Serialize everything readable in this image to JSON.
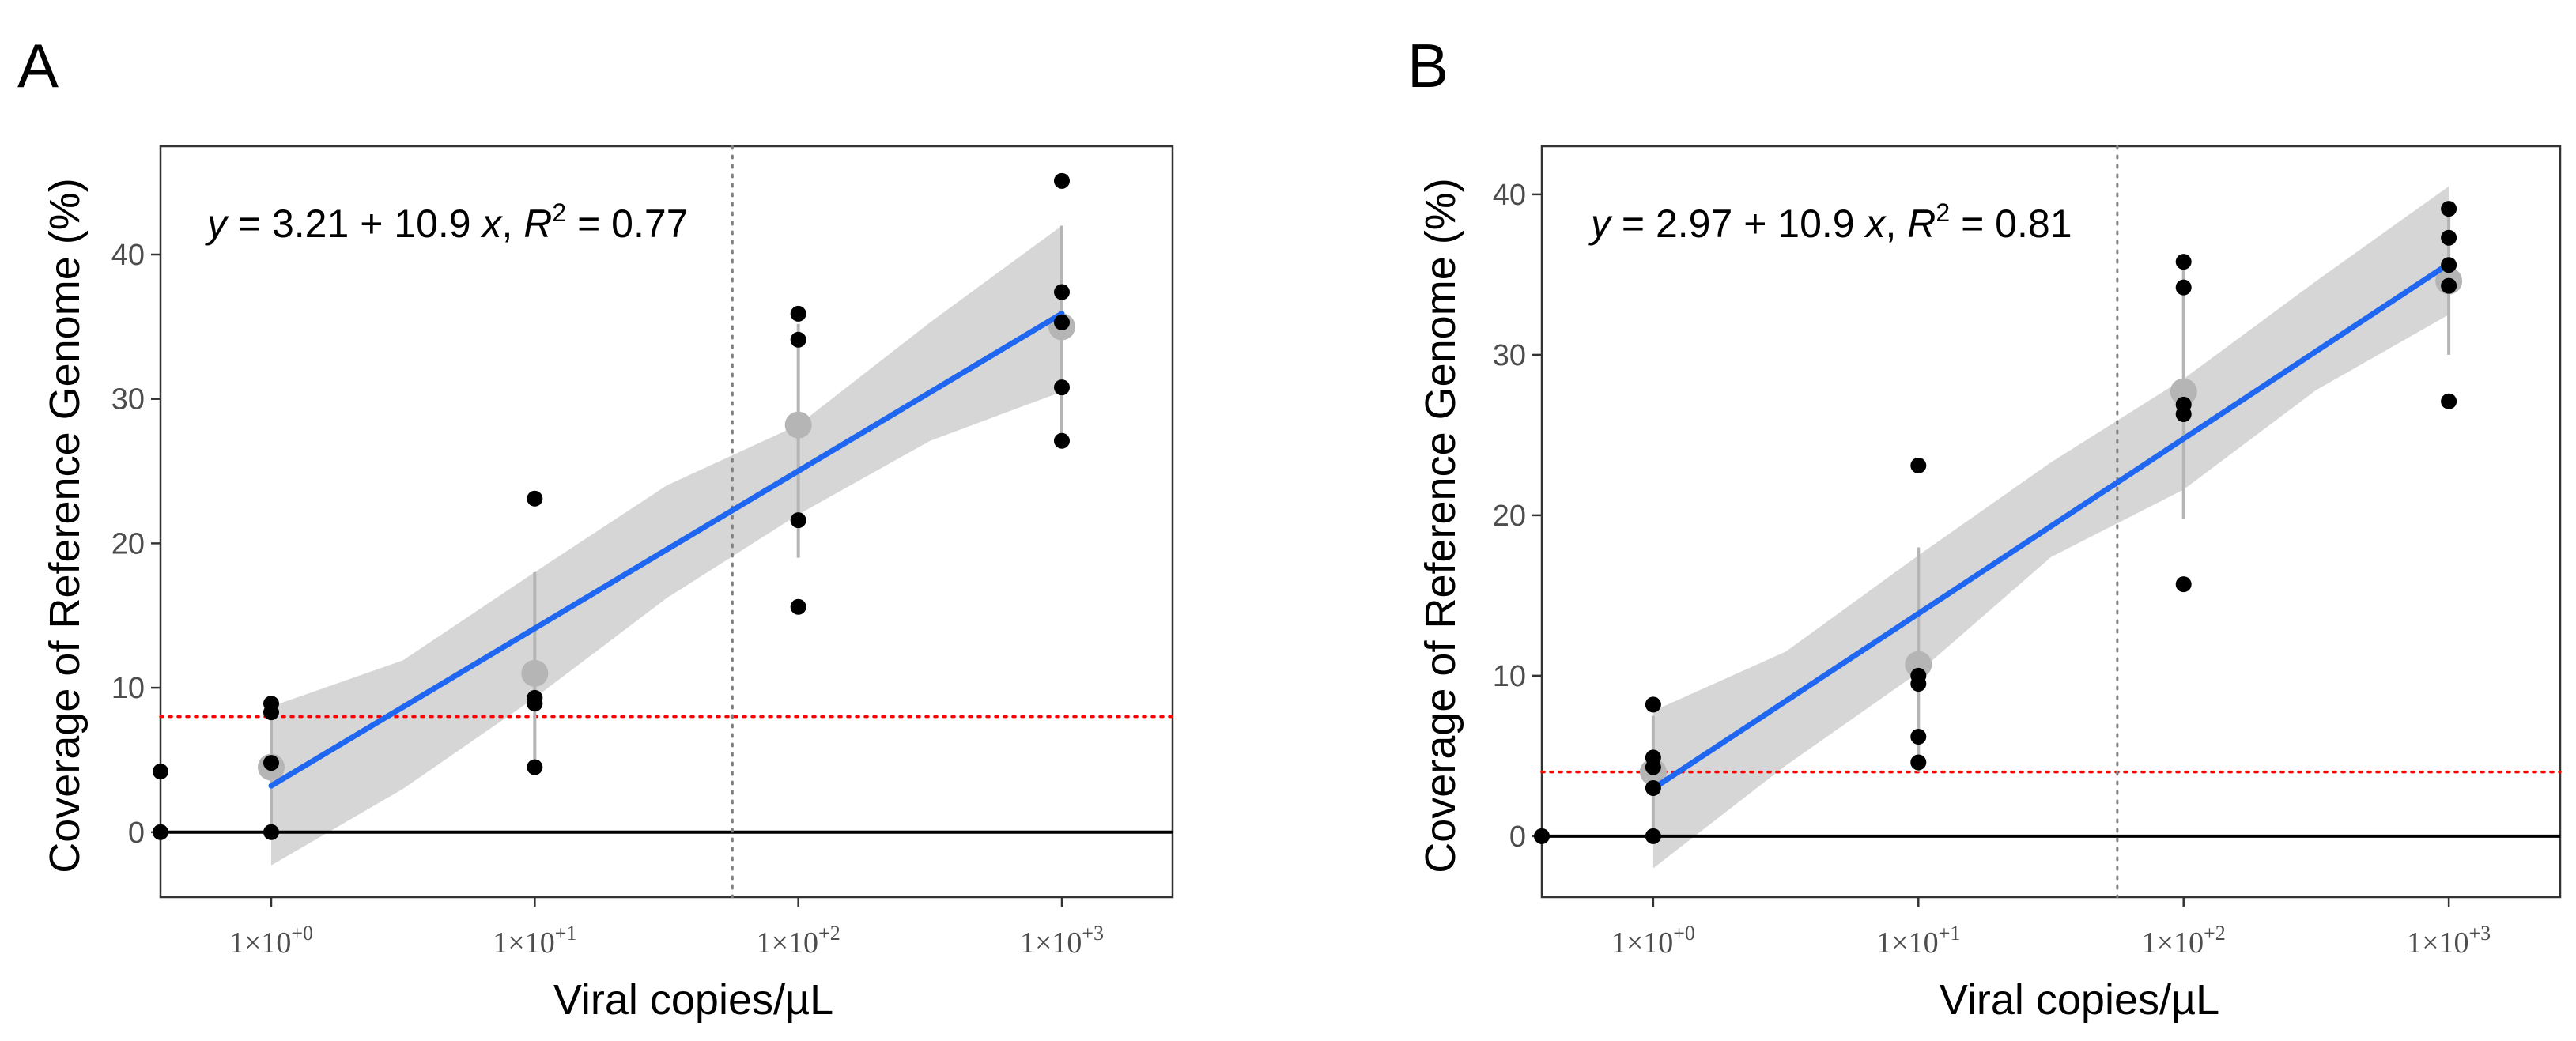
{
  "colors": {
    "fit_line": "#1f66f0",
    "confidence_band": "#d4d4d4",
    "points": "#000000",
    "mean_points": "#b5b5b5",
    "error_bars": "#b5b5b5",
    "threshold": "#ff0000",
    "vertical_reference": "#808080",
    "zero_line": "#000000"
  },
  "chart_data": [
    {
      "panel": "A",
      "type": "scatter",
      "xlabel": "Viral copies/µL",
      "ylabel": "Coverage of Reference Genome (%)",
      "x_scale": "log10",
      "x_ticks": [
        {
          "value": 0,
          "base": "1×10",
          "exp": "+0"
        },
        {
          "value": 1,
          "base": "1×10",
          "exp": "+1"
        },
        {
          "value": 2,
          "base": "1×10",
          "exp": "+2"
        },
        {
          "value": 3,
          "base": "1×10",
          "exp": "+3"
        }
      ],
      "y_ticks": [
        0,
        10,
        20,
        30,
        40
      ],
      "xlim": [
        -0.42,
        3.42
      ],
      "ylim": [
        -4.5,
        47.5
      ],
      "equation": {
        "prefix": "y = 3.21 + 10.9 x, R",
        "sup": "2",
        "suffix": " = 0.77"
      },
      "fit": {
        "intercept": 3.21,
        "slope": 10.9,
        "x_range": [
          0,
          3
        ]
      },
      "ci_band": [
        {
          "x": 0,
          "lo": -2.3,
          "hi": 8.7
        },
        {
          "x": 0.5,
          "lo": 3.0,
          "hi": 11.9
        },
        {
          "x": 1,
          "lo": 9.3,
          "hi": 18.0
        },
        {
          "x": 1.5,
          "lo": 16.2,
          "hi": 24.0
        },
        {
          "x": 2,
          "lo": 22.0,
          "hi": 28.2
        },
        {
          "x": 2.5,
          "lo": 27.1,
          "hi": 35.3
        },
        {
          "x": 3,
          "lo": 30.5,
          "hi": 42.0
        }
      ],
      "points": [
        {
          "x": -0.42,
          "y": 4.2
        },
        {
          "x": -0.42,
          "y": 0.0
        },
        {
          "x": 0,
          "y": 8.9
        },
        {
          "x": 0,
          "y": 8.3
        },
        {
          "x": 0,
          "y": 4.8
        },
        {
          "x": 0,
          "y": 0.0
        },
        {
          "x": 1,
          "y": 23.1
        },
        {
          "x": 1,
          "y": 9.3
        },
        {
          "x": 1,
          "y": 8.9
        },
        {
          "x": 1,
          "y": 4.5
        },
        {
          "x": 2,
          "y": 35.9
        },
        {
          "x": 2,
          "y": 34.1
        },
        {
          "x": 2,
          "y": 21.6
        },
        {
          "x": 2,
          "y": 15.6
        },
        {
          "x": 3,
          "y": 45.1
        },
        {
          "x": 3,
          "y": 37.4
        },
        {
          "x": 3,
          "y": 35.3
        },
        {
          "x": 3,
          "y": 30.8
        },
        {
          "x": 3,
          "y": 27.1
        }
      ],
      "means": [
        {
          "x": 0,
          "y": 4.5,
          "lo": 0.0,
          "hi": 8.9
        },
        {
          "x": 1,
          "y": 11.0,
          "lo": 4.5,
          "hi": 18.0
        },
        {
          "x": 2,
          "y": 28.2,
          "lo": 19.0,
          "hi": 35.2
        },
        {
          "x": 3,
          "y": 35.0,
          "lo": 27.5,
          "hi": 42.0
        }
      ],
      "threshold_y": 8.0,
      "vline_x": 1.75
    },
    {
      "panel": "B",
      "type": "scatter",
      "xlabel": "Viral copies/µL",
      "ylabel": "Coverage of Reference Genome (%)",
      "x_scale": "log10",
      "x_ticks": [
        {
          "value": 0,
          "base": "1×10",
          "exp": "+0"
        },
        {
          "value": 1,
          "base": "1×10",
          "exp": "+1"
        },
        {
          "value": 2,
          "base": "1×10",
          "exp": "+2"
        },
        {
          "value": 3,
          "base": "1×10",
          "exp": "+3"
        }
      ],
      "y_ticks": [
        0,
        10,
        20,
        30,
        40
      ],
      "xlim": [
        -0.42,
        3.42
      ],
      "ylim": [
        -3.8,
        43.0
      ],
      "equation": {
        "prefix": "y = 2.97 + 10.9 x, R",
        "sup": "2",
        "suffix": " = 0.81"
      },
      "fit": {
        "intercept": 2.97,
        "slope": 10.9,
        "x_range": [
          0,
          3
        ]
      },
      "ci_band": [
        {
          "x": 0,
          "lo": -2.0,
          "hi": 7.8
        },
        {
          "x": 0.5,
          "lo": 4.4,
          "hi": 11.5
        },
        {
          "x": 1,
          "lo": 10.2,
          "hi": 17.5
        },
        {
          "x": 1.5,
          "lo": 17.4,
          "hi": 23.3
        },
        {
          "x": 2,
          "lo": 21.6,
          "hi": 28.5
        },
        {
          "x": 2.5,
          "lo": 27.8,
          "hi": 34.6
        },
        {
          "x": 3,
          "lo": 32.5,
          "hi": 40.5
        }
      ],
      "points": [
        {
          "x": -0.42,
          "y": 0.0
        },
        {
          "x": 0,
          "y": 8.2
        },
        {
          "x": 0,
          "y": 4.9
        },
        {
          "x": 0,
          "y": 4.3
        },
        {
          "x": 0,
          "y": 3.0
        },
        {
          "x": 0,
          "y": 0.0
        },
        {
          "x": 1,
          "y": 23.1
        },
        {
          "x": 1,
          "y": 10.0
        },
        {
          "x": 1,
          "y": 9.5
        },
        {
          "x": 1,
          "y": 6.2
        },
        {
          "x": 1,
          "y": 4.6
        },
        {
          "x": 2,
          "y": 35.8
        },
        {
          "x": 2,
          "y": 34.2
        },
        {
          "x": 2,
          "y": 26.9
        },
        {
          "x": 2,
          "y": 26.3
        },
        {
          "x": 2,
          "y": 15.7
        },
        {
          "x": 3,
          "y": 39.1
        },
        {
          "x": 3,
          "y": 37.3
        },
        {
          "x": 3,
          "y": 35.6
        },
        {
          "x": 3,
          "y": 34.3
        },
        {
          "x": 3,
          "y": 27.1
        }
      ],
      "means": [
        {
          "x": 0,
          "y": 4.0,
          "lo": 0.5,
          "hi": 7.5
        },
        {
          "x": 1,
          "y": 10.7,
          "lo": 4.0,
          "hi": 18.0
        },
        {
          "x": 2,
          "y": 27.7,
          "lo": 19.8,
          "hi": 35.5
        },
        {
          "x": 3,
          "y": 34.6,
          "lo": 30.0,
          "hi": 39.5
        }
      ],
      "threshold_y": 4.0,
      "vline_x": 1.75
    }
  ]
}
